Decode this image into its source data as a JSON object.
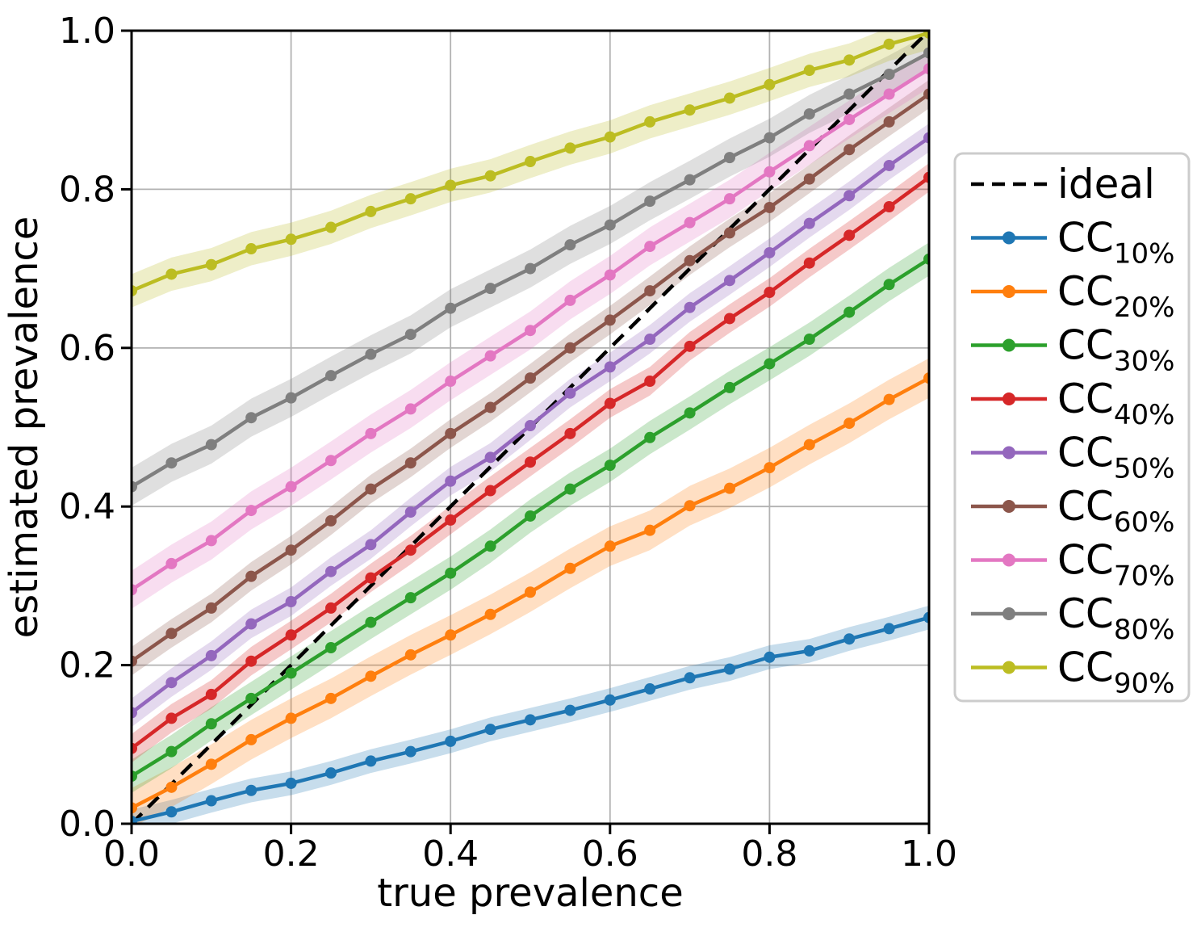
{
  "figure": {
    "background": "#ffffff",
    "spine_color": "#000000",
    "grid_color": "#b2b2b2",
    "legend_border_color": "#cccccc"
  },
  "chart_data": {
    "type": "line",
    "title": "",
    "xlabel": "true prevalence",
    "ylabel": "estimated prevalence",
    "xlim": [
      0.0,
      1.0
    ],
    "ylim": [
      0.0,
      1.0
    ],
    "grid": true,
    "legend_position": "outside-right",
    "tick_values": [
      0.0,
      0.2,
      0.4,
      0.6,
      0.8,
      1.0
    ],
    "xtick_labels": [
      "0.0",
      "0.2",
      "0.4",
      "0.6",
      "0.8",
      "1.0"
    ],
    "ytick_labels": [
      "0.0",
      "0.2",
      "0.4",
      "0.6",
      "0.8",
      "1.0"
    ],
    "x": [
      0.0,
      0.05,
      0.1,
      0.15,
      0.2,
      0.25,
      0.3,
      0.35,
      0.4,
      0.45,
      0.5,
      0.55,
      0.6,
      0.65,
      0.7,
      0.75,
      0.8,
      0.85,
      0.9,
      0.95,
      1.0
    ],
    "reference_line": {
      "label": "ideal",
      "color": "#000000",
      "style": "dashed",
      "from": [
        0.0,
        0.0
      ],
      "to": [
        1.0,
        1.0
      ]
    },
    "series": [
      {
        "name": "CC",
        "sub": "10%",
        "color": "#1f77b4",
        "band": 0.015,
        "values": [
          0.003,
          0.015,
          0.029,
          0.042,
          0.051,
          0.064,
          0.079,
          0.091,
          0.104,
          0.119,
          0.131,
          0.143,
          0.156,
          0.17,
          0.184,
          0.195,
          0.21,
          0.218,
          0.233,
          0.246,
          0.26
        ]
      },
      {
        "name": "CC",
        "sub": "20%",
        "color": "#ff7f0e",
        "band": 0.025,
        "values": [
          0.02,
          0.046,
          0.075,
          0.106,
          0.133,
          0.158,
          0.186,
          0.213,
          0.238,
          0.264,
          0.292,
          0.322,
          0.35,
          0.37,
          0.401,
          0.423,
          0.449,
          0.478,
          0.505,
          0.535,
          0.562
        ]
      },
      {
        "name": "CC",
        "sub": "30%",
        "color": "#2ca02c",
        "band": 0.021,
        "values": [
          0.06,
          0.091,
          0.126,
          0.158,
          0.19,
          0.222,
          0.254,
          0.285,
          0.316,
          0.35,
          0.388,
          0.422,
          0.452,
          0.487,
          0.518,
          0.55,
          0.58,
          0.611,
          0.645,
          0.68,
          0.712
        ]
      },
      {
        "name": "CC",
        "sub": "40%",
        "color": "#d62728",
        "band": 0.018,
        "values": [
          0.095,
          0.133,
          0.163,
          0.205,
          0.238,
          0.272,
          0.31,
          0.345,
          0.383,
          0.42,
          0.456,
          0.492,
          0.53,
          0.558,
          0.602,
          0.637,
          0.67,
          0.707,
          0.742,
          0.778,
          0.815
        ]
      },
      {
        "name": "CC",
        "sub": "50%",
        "color": "#9467bd",
        "band": 0.018,
        "values": [
          0.14,
          0.178,
          0.212,
          0.252,
          0.28,
          0.318,
          0.352,
          0.393,
          0.432,
          0.462,
          0.502,
          0.543,
          0.576,
          0.611,
          0.651,
          0.685,
          0.72,
          0.757,
          0.792,
          0.83,
          0.865
        ]
      },
      {
        "name": "CC",
        "sub": "60%",
        "color": "#8c564b",
        "band": 0.018,
        "values": [
          0.205,
          0.24,
          0.272,
          0.312,
          0.345,
          0.382,
          0.422,
          0.455,
          0.492,
          0.525,
          0.562,
          0.6,
          0.635,
          0.672,
          0.71,
          0.745,
          0.777,
          0.813,
          0.85,
          0.885,
          0.92
        ]
      },
      {
        "name": "CC",
        "sub": "70%",
        "color": "#e377c2",
        "band": 0.024,
        "values": [
          0.295,
          0.328,
          0.357,
          0.395,
          0.425,
          0.458,
          0.492,
          0.523,
          0.558,
          0.59,
          0.622,
          0.66,
          0.692,
          0.728,
          0.758,
          0.788,
          0.822,
          0.855,
          0.888,
          0.92,
          0.952
        ]
      },
      {
        "name": "CC",
        "sub": "80%",
        "color": "#7f7f7f",
        "band": 0.024,
        "values": [
          0.425,
          0.455,
          0.478,
          0.512,
          0.537,
          0.565,
          0.592,
          0.617,
          0.65,
          0.675,
          0.7,
          0.73,
          0.755,
          0.785,
          0.812,
          0.84,
          0.865,
          0.895,
          0.92,
          0.945,
          0.972
        ]
      },
      {
        "name": "CC",
        "sub": "90%",
        "color": "#bcbd22",
        "band": 0.021,
        "values": [
          0.672,
          0.693,
          0.705,
          0.725,
          0.737,
          0.752,
          0.772,
          0.788,
          0.805,
          0.817,
          0.835,
          0.852,
          0.866,
          0.885,
          0.9,
          0.915,
          0.932,
          0.95,
          0.963,
          0.983,
          0.997
        ]
      }
    ]
  }
}
